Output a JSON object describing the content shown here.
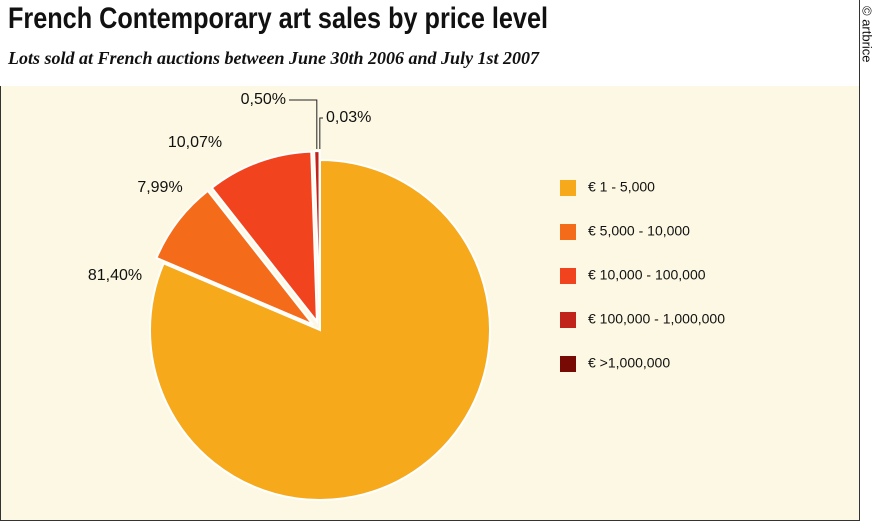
{
  "chart_data": {
    "type": "pie",
    "title": "French Contemporary art sales by price level",
    "subtitle": "Lots sold at French auctions between June 30th 2006 and July 1st 2007",
    "credit": "© artbrice",
    "categories": [
      "€ 1 - 5,000",
      "€ 5,000 - 10,000",
      "€ 10,000 - 100,000",
      "€ 100,000 - 1,000,000",
      "€ >1,000,000"
    ],
    "values": [
      81.4,
      7.99,
      10.07,
      0.5,
      0.03
    ],
    "value_labels": [
      "81,40%",
      "7,99%",
      "10,07%",
      "0,50%",
      "0,03%"
    ],
    "colors": [
      "#f6a91b",
      "#f46c1a",
      "#f2431f",
      "#c1231b",
      "#780a06"
    ]
  }
}
